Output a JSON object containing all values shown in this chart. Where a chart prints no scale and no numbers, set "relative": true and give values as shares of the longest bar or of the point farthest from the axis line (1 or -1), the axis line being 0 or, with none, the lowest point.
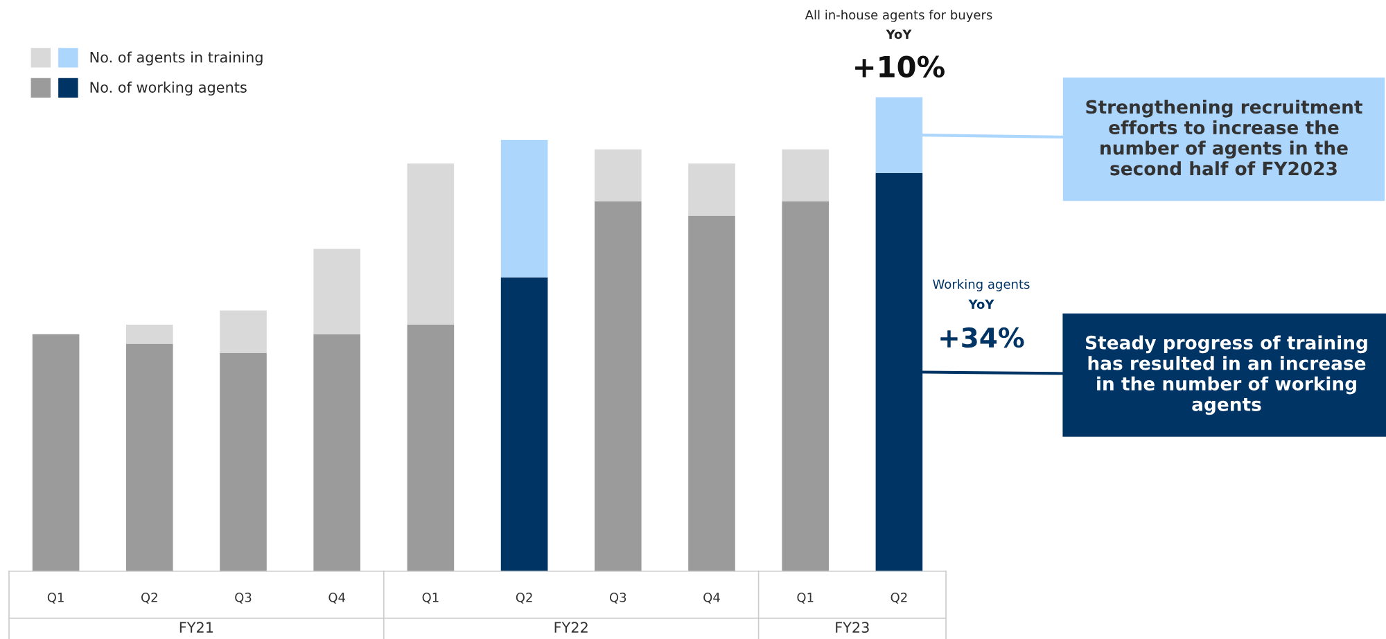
{
  "chart_data": {
    "type": "bar",
    "relative": true,
    "stacked": true,
    "categories": [
      "Q1",
      "Q2",
      "Q3",
      "Q4",
      "Q1",
      "Q2",
      "Q3",
      "Q4",
      "Q1",
      "Q2"
    ],
    "series": [
      {
        "name": "No. of working agents",
        "colors": [
          "#9b9b9b",
          "#9b9b9b",
          "#9b9b9b",
          "#9b9b9b",
          "#9b9b9b",
          "#003464",
          "#9b9b9b",
          "#9b9b9b",
          "#9b9b9b",
          "#003464"
        ],
        "values": [
          0.5,
          0.48,
          0.46,
          0.5,
          0.52,
          0.62,
          0.78,
          0.75,
          0.78,
          0.84
        ]
      },
      {
        "name": "No. of agents in training",
        "colors": [
          "#d9d9d9",
          "#d9d9d9",
          "#d9d9d9",
          "#d9d9d9",
          "#d9d9d9",
          "#add6fd",
          "#d9d9d9",
          "#d9d9d9",
          "#d9d9d9",
          "#add6fd"
        ],
        "values": [
          0,
          0.04,
          0.09,
          0.18,
          0.34,
          0.29,
          0.11,
          0.11,
          0.11,
          0.16
        ]
      }
    ],
    "legend": "top left",
    "grid": false,
    "annotations": [
      "FY21",
      "FY22",
      "FY23",
      "All in-house agents for buyers",
      "YoY",
      "+10%",
      "Working agents",
      "YoY",
      "+34%",
      "Strengthening recruitment\nefforts to increase the\nnumber of agents in the\nsecond half of FY2023",
      "Steady progress of training\nhas resulted in an increase\nin the number of working\nagents"
    ]
  }
}
